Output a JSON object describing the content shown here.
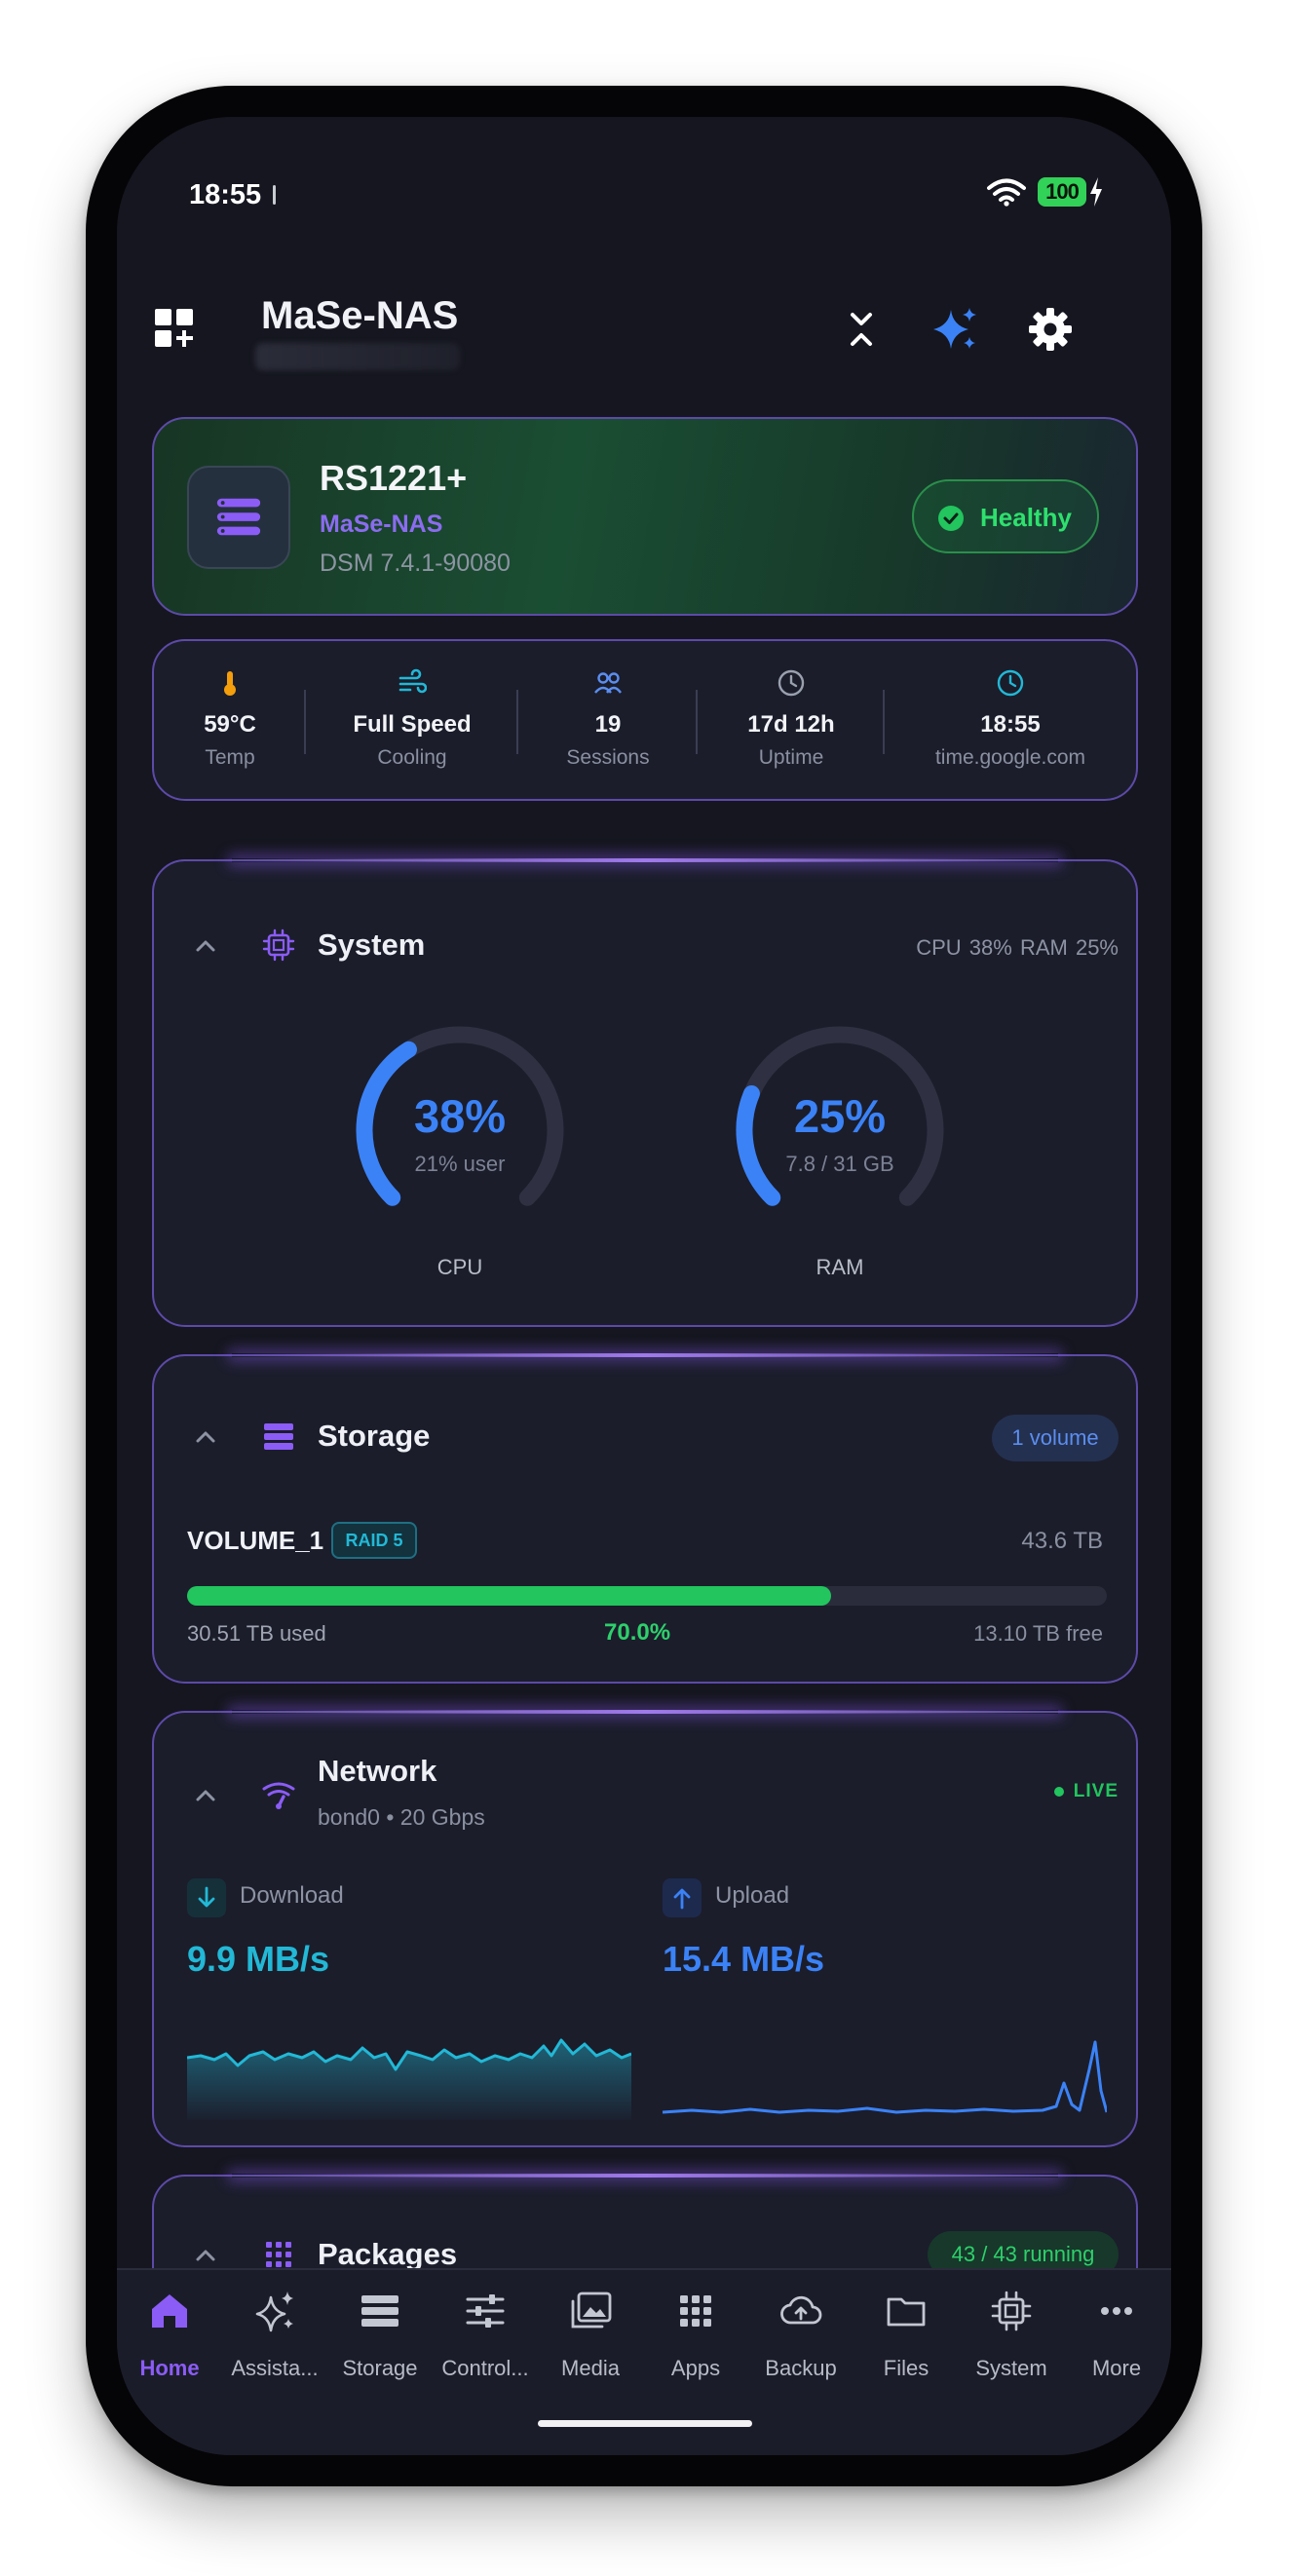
{
  "status_bar": {
    "time": "18:55",
    "battery": "100"
  },
  "header": {
    "title": "MaSe-NAS"
  },
  "device": {
    "model": "RS1221+",
    "name": "MaSe-NAS",
    "dsm": "DSM 7.4.1-90080",
    "health": "Healthy"
  },
  "stats": [
    {
      "value": "59°C",
      "label": "Temp",
      "icon": "thermometer-icon"
    },
    {
      "value": "Full Speed",
      "label": "Cooling",
      "icon": "fan-wind-icon"
    },
    {
      "value": "19",
      "label": "Sessions",
      "icon": "users-icon"
    },
    {
      "value": "17d 12h",
      "label": "Uptime",
      "icon": "clock-icon"
    },
    {
      "value": "18:55",
      "label": "time.google.com",
      "icon": "clock-icon"
    }
  ],
  "system": {
    "title": "System",
    "summary": "CPU 38%  RAM 25%",
    "cpu": {
      "value": "38%",
      "sub": "21% user",
      "label": "CPU",
      "fraction": 0.38
    },
    "ram": {
      "value": "25%",
      "sub": "7.8 / 31 GB",
      "label": "RAM",
      "fraction": 0.25
    }
  },
  "storage": {
    "title": "Storage",
    "badge": "1 volume",
    "volume": {
      "name": "VOLUME_1",
      "raid": "RAID 5",
      "total": "43.6 TB",
      "used": "30.51 TB used",
      "percent": "70.0%",
      "fraction": 0.7,
      "free": "13.10 TB free"
    }
  },
  "network": {
    "title": "Network",
    "subtitle": "bond0 • 20 Gbps",
    "live": "LIVE",
    "download": {
      "label": "Download",
      "rate": "9.9 MB/s"
    },
    "upload": {
      "label": "Upload",
      "rate": "15.4 MB/s"
    }
  },
  "packages": {
    "title": "Packages",
    "badge": "43 / 43 running"
  },
  "nav": [
    {
      "label": "Home",
      "icon": "home-icon",
      "active": true
    },
    {
      "label": "Assista...",
      "icon": "sparkles-icon"
    },
    {
      "label": "Storage",
      "icon": "storage-icon"
    },
    {
      "label": "Control...",
      "icon": "sliders-icon"
    },
    {
      "label": "Media",
      "icon": "media-icon"
    },
    {
      "label": "Apps",
      "icon": "apps-grid-icon"
    },
    {
      "label": "Backup",
      "icon": "cloud-upload-icon"
    },
    {
      "label": "Files",
      "icon": "folder-icon"
    },
    {
      "label": "System",
      "icon": "chip-icon"
    },
    {
      "label": "More",
      "icon": "more-icon"
    }
  ],
  "colors": {
    "accent": "#8b5cf6",
    "blue": "#3b82f6",
    "cyan": "#22b8d6",
    "green": "#22c55e",
    "background": "#15161f"
  }
}
